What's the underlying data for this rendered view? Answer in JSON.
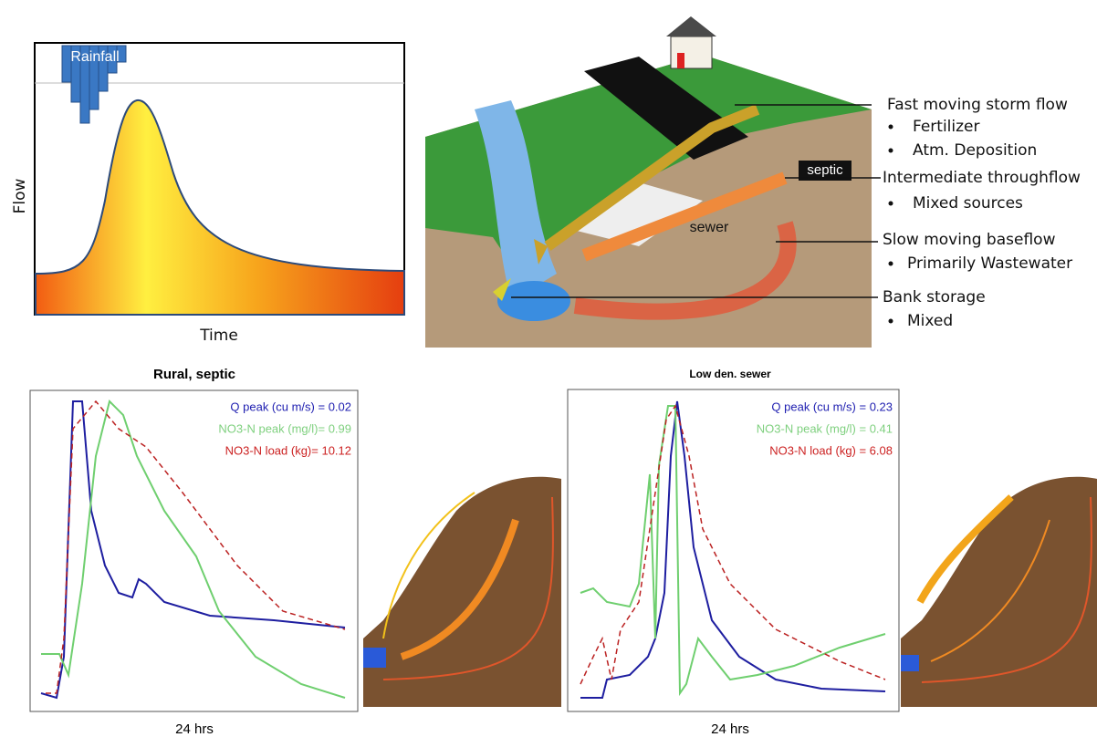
{
  "hydrograph": {
    "rain_label": "Rainfall",
    "y_label": "Flow",
    "x_label": "Time"
  },
  "diagram": {
    "septic": "septic",
    "sewer": "sewer",
    "flows": [
      {
        "title": "Fast moving storm flow",
        "items": [
          "Fertilizer",
          "Atm. Deposition"
        ]
      },
      {
        "title": "Intermediate throughflow",
        "items": [
          "Mixed sources"
        ]
      },
      {
        "title": "Slow moving baseflow",
        "items": [
          "Primarily Wastewater"
        ]
      },
      {
        "title": "Bank storage",
        "items": [
          "Mixed"
        ]
      }
    ]
  },
  "panels": [
    {
      "title": "Rural, septic",
      "stats": [
        "Q peak (cu m/s) = 0.02",
        "NO3-N peak (mg/l)= 0.99",
        "NO3-N load (kg)= 10.12"
      ],
      "x_label": "24 hrs"
    },
    {
      "title": "Low den. sewer",
      "stats": [
        "Q peak (cu m/s) = 0.23",
        "NO3-N peak (mg/l) = 0.41",
        "NO3-N load (kg) = 6.08"
      ],
      "x_label": "24 hrs"
    }
  ]
}
